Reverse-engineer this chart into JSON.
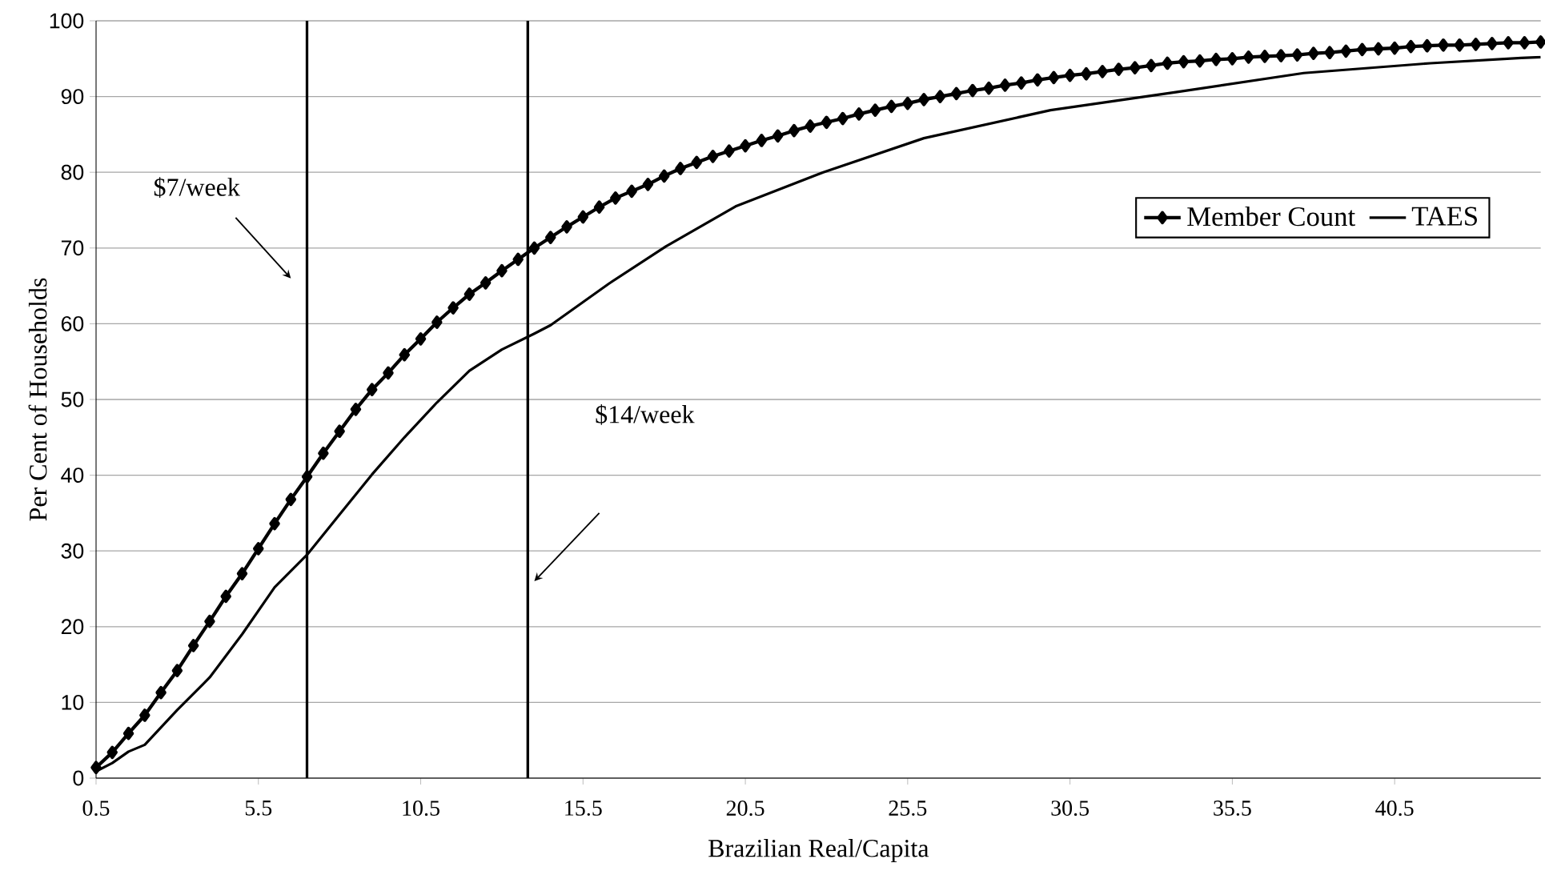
{
  "chart_data": {
    "type": "line",
    "xlabel": "Brazilian Real/Capita",
    "ylabel": "Per Cent of  Households",
    "xlim": [
      0.5,
      45
    ],
    "ylim": [
      0,
      100
    ],
    "xticks": [
      0.5,
      5.5,
      10.5,
      15.5,
      20.5,
      25.5,
      30.5,
      35.5,
      40.5
    ],
    "yticks": [
      0,
      10,
      20,
      30,
      40,
      50,
      60,
      70,
      80,
      90,
      100
    ],
    "grid": "y",
    "legend": "right",
    "ref_lines": [
      {
        "axis": "x",
        "value": 7,
        "label": "$7/week"
      },
      {
        "axis": "x",
        "value": 13.8,
        "label": "$14/week"
      }
    ],
    "series": [
      {
        "name": "Member Count",
        "color": "#000000",
        "marker": "diamond",
        "x": [
          0.5,
          1,
          1.5,
          2,
          2.5,
          3,
          3.5,
          4,
          4.5,
          5,
          5.5,
          6,
          6.5,
          7,
          7.5,
          8,
          8.5,
          9,
          9.5,
          10,
          10.5,
          11,
          11.5,
          12,
          12.5,
          13,
          13.5,
          14,
          14.5,
          15,
          15.5,
          16,
          16.5,
          17,
          17.5,
          18,
          18.5,
          19,
          19.5,
          20,
          20.5,
          21,
          21.5,
          22,
          22.5,
          23,
          23.5,
          24,
          24.5,
          25,
          25.5,
          26,
          26.5,
          27,
          27.5,
          28,
          28.5,
          29,
          29.5,
          30,
          30.5,
          31,
          31.5,
          32,
          32.5,
          33,
          33.5,
          34,
          34.5,
          35,
          35.5,
          36,
          36.5,
          37,
          37.5,
          38,
          38.5,
          39,
          39.5,
          40,
          40.5,
          41,
          41.5,
          42,
          42.5,
          43,
          43.5,
          44,
          44.5,
          45
        ],
        "values": [
          1.4,
          3.4,
          5.9,
          8.3,
          11.3,
          14.2,
          17.5,
          20.7,
          24.0,
          27.0,
          30.3,
          33.6,
          36.8,
          39.8,
          42.9,
          45.8,
          48.7,
          51.3,
          53.5,
          55.9,
          58.0,
          60.2,
          62.1,
          63.9,
          65.4,
          67.0,
          68.5,
          70.0,
          71.4,
          72.8,
          74.1,
          75.4,
          76.6,
          77.5,
          78.4,
          79.5,
          80.5,
          81.3,
          82.1,
          82.8,
          83.5,
          84.2,
          84.8,
          85.5,
          86.1,
          86.6,
          87.1,
          87.7,
          88.2,
          88.7,
          89.1,
          89.6,
          90.0,
          90.4,
          90.8,
          91.1,
          91.5,
          91.8,
          92.2,
          92.5,
          92.8,
          93.0,
          93.3,
          93.6,
          93.8,
          94.1,
          94.4,
          94.6,
          94.7,
          94.9,
          95.0,
          95.2,
          95.3,
          95.4,
          95.5,
          95.7,
          95.8,
          96.0,
          96.2,
          96.3,
          96.4,
          96.6,
          96.7,
          96.8,
          96.8,
          96.9,
          97.0,
          97.1,
          97.1,
          97.2
        ]
      },
      {
        "name": "TAES",
        "color": "#000000",
        "marker": "none",
        "x": [
          0.5,
          1,
          1.5,
          2,
          3,
          4,
          5,
          6,
          7,
          8,
          9,
          10,
          11,
          12,
          13,
          14,
          14.5,
          16.3,
          18.05,
          20.2,
          22.9,
          26.0,
          29.9,
          33.8,
          37.7,
          41.6,
          44.4,
          45
        ],
        "values": [
          0.9,
          2.0,
          3.5,
          4.4,
          9.0,
          13.3,
          19.0,
          25.2,
          29.5,
          34.8,
          40.1,
          45.0,
          49.6,
          53.8,
          56.6,
          58.7,
          59.8,
          65.3,
          70.2,
          75.5,
          80.0,
          84.5,
          88.2,
          90.6,
          93.1,
          94.4,
          95.1,
          95.2
        ]
      }
    ]
  }
}
